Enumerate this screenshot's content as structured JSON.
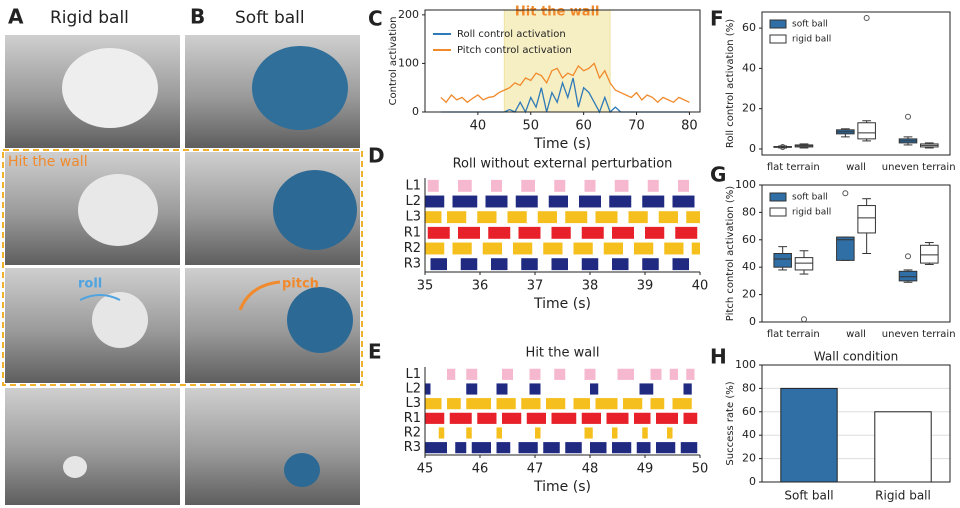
{
  "photos": {
    "A": {
      "letter": "A",
      "title": "Rigid ball"
    },
    "B": {
      "letter": "B",
      "title": "Soft ball"
    },
    "row_label": "Hit the wall",
    "roll_label": "roll",
    "pitch_label": "pitch"
  },
  "chart_data": [
    {
      "type": "line",
      "panel": "C",
      "xlabel": "Time (s)",
      "ylabel": "Control activation",
      "xlim": [
        30,
        82
      ],
      "ylim": [
        0,
        210
      ],
      "xticks": [
        40,
        50,
        60,
        70,
        80
      ],
      "yticks": [
        0,
        100,
        200
      ],
      "highlight": {
        "label": "Hit the wall",
        "range": [
          45,
          65
        ],
        "color": "#f7efc4"
      },
      "legend": "upper left",
      "x": [
        33,
        34,
        35,
        36,
        37,
        38,
        39,
        40,
        41,
        42,
        43,
        44,
        45,
        46,
        47,
        48,
        49,
        50,
        51,
        52,
        53,
        54,
        55,
        56,
        57,
        58,
        59,
        60,
        61,
        62,
        63,
        64,
        65,
        66,
        67,
        68,
        69,
        70,
        71,
        72,
        73,
        74,
        75,
        76,
        77,
        78,
        79,
        80
      ],
      "series": [
        {
          "name": "Roll control activation",
          "color": "#2f7ab8",
          "values": [
            0,
            0,
            0,
            0,
            0,
            0,
            0,
            0,
            0,
            0,
            0,
            0,
            0,
            5,
            0,
            20,
            0,
            30,
            10,
            50,
            0,
            40,
            20,
            60,
            30,
            70,
            10,
            50,
            40,
            20,
            0,
            30,
            0,
            10,
            0,
            0,
            0,
            0,
            0,
            0,
            0,
            0,
            0,
            0,
            0,
            0,
            0,
            0
          ]
        },
        {
          "name": "Pitch control activation",
          "color": "#f08a2c",
          "values": [
            30,
            20,
            35,
            25,
            30,
            20,
            28,
            35,
            25,
            30,
            32,
            40,
            45,
            50,
            60,
            55,
            70,
            65,
            80,
            75,
            60,
            85,
            90,
            70,
            80,
            75,
            95,
            85,
            90,
            100,
            70,
            85,
            60,
            45,
            40,
            35,
            30,
            40,
            25,
            35,
            30,
            20,
            30,
            25,
            20,
            30,
            25,
            20
          ]
        }
      ]
    },
    {
      "type": "raster",
      "panel": "D",
      "title": "Roll without external perturbation",
      "xlabel": "Time (s)",
      "xlim": [
        35,
        40
      ],
      "xticks": [
        35,
        36,
        37,
        38,
        39,
        40
      ],
      "series": [
        {
          "name": "L1",
          "color": "#f5b8cf",
          "intervals": [
            [
              35.05,
              35.25
            ],
            [
              35.6,
              35.85
            ],
            [
              36.2,
              36.4
            ],
            [
              36.75,
              37.0
            ],
            [
              37.35,
              37.55
            ],
            [
              37.9,
              38.1
            ],
            [
              38.45,
              38.7
            ],
            [
              39.05,
              39.25
            ],
            [
              39.6,
              39.8
            ]
          ]
        },
        {
          "name": "L2",
          "color": "#1f2a80",
          "intervals": [
            [
              35.0,
              35.35
            ],
            [
              35.5,
              35.95
            ],
            [
              36.1,
              36.5
            ],
            [
              36.65,
              37.05
            ],
            [
              37.25,
              37.6
            ],
            [
              37.8,
              38.2
            ],
            [
              38.35,
              38.75
            ],
            [
              38.95,
              39.35
            ],
            [
              39.5,
              39.9
            ]
          ]
        },
        {
          "name": "L3",
          "color": "#f5bf1e",
          "intervals": [
            [
              35.0,
              35.3
            ],
            [
              35.4,
              35.75
            ],
            [
              35.95,
              36.3
            ],
            [
              36.5,
              36.85
            ],
            [
              37.05,
              37.4
            ],
            [
              37.55,
              37.95
            ],
            [
              38.1,
              38.5
            ],
            [
              38.7,
              39.05
            ],
            [
              39.25,
              39.6
            ],
            [
              39.75,
              40.0
            ]
          ]
        },
        {
          "name": "R1",
          "color": "#e8202a",
          "intervals": [
            [
              35.05,
              35.45
            ],
            [
              35.6,
              36.0
            ],
            [
              36.15,
              36.55
            ],
            [
              36.7,
              37.1
            ],
            [
              37.3,
              37.65
            ],
            [
              37.85,
              38.25
            ],
            [
              38.4,
              38.8
            ],
            [
              39.0,
              39.35
            ],
            [
              39.55,
              39.95
            ]
          ]
        },
        {
          "name": "R2",
          "color": "#f5bf1e",
          "intervals": [
            [
              35.0,
              35.35
            ],
            [
              35.5,
              35.85
            ],
            [
              36.05,
              36.4
            ],
            [
              36.6,
              36.95
            ],
            [
              37.15,
              37.5
            ],
            [
              37.7,
              38.05
            ],
            [
              38.25,
              38.6
            ],
            [
              38.8,
              39.15
            ],
            [
              39.35,
              39.7
            ],
            [
              39.85,
              40.0
            ]
          ]
        },
        {
          "name": "R3",
          "color": "#1f2a80",
          "intervals": [
            [
              35.1,
              35.4
            ],
            [
              35.65,
              35.95
            ],
            [
              36.2,
              36.5
            ],
            [
              36.75,
              37.05
            ],
            [
              37.3,
              37.6
            ],
            [
              37.85,
              38.15
            ],
            [
              38.4,
              38.7
            ],
            [
              38.95,
              39.25
            ],
            [
              39.5,
              39.8
            ]
          ]
        }
      ]
    },
    {
      "type": "raster",
      "panel": "E",
      "title": "Hit the wall",
      "xlabel": "Time (s)",
      "xlim": [
        45,
        50
      ],
      "xticks": [
        45,
        46,
        47,
        48,
        49,
        50
      ],
      "series": [
        {
          "name": "L1",
          "color": "#f5b8cf",
          "intervals": [
            [
              45.4,
              45.55
            ],
            [
              45.75,
              45.95
            ],
            [
              46.4,
              46.6
            ],
            [
              46.9,
              47.1
            ],
            [
              47.35,
              47.55
            ],
            [
              47.9,
              48.1
            ],
            [
              48.5,
              48.8
            ],
            [
              49.1,
              49.3
            ],
            [
              49.45,
              49.6
            ],
            [
              49.75,
              49.9
            ]
          ]
        },
        {
          "name": "L2",
          "color": "#1f2a80",
          "intervals": [
            [
              45.0,
              45.1
            ],
            [
              45.75,
              45.95
            ],
            [
              46.3,
              46.5
            ],
            [
              46.9,
              47.1
            ],
            [
              48.0,
              48.15
            ],
            [
              48.9,
              49.15
            ],
            [
              49.7,
              49.85
            ]
          ]
        },
        {
          "name": "L3",
          "color": "#f5bf1e",
          "intervals": [
            [
              45.0,
              45.3
            ],
            [
              45.4,
              45.65
            ],
            [
              45.75,
              46.2
            ],
            [
              46.3,
              46.65
            ],
            [
              46.75,
              47.1
            ],
            [
              47.2,
              47.55
            ],
            [
              47.7,
              48.0
            ],
            [
              48.1,
              48.5
            ],
            [
              48.6,
              48.95
            ],
            [
              49.1,
              49.35
            ],
            [
              49.5,
              49.85
            ]
          ]
        },
        {
          "name": "R1",
          "color": "#e8202a",
          "intervals": [
            [
              45.0,
              45.35
            ],
            [
              45.45,
              45.85
            ],
            [
              45.95,
              46.3
            ],
            [
              46.4,
              46.75
            ],
            [
              46.85,
              47.2
            ],
            [
              47.3,
              47.75
            ],
            [
              47.85,
              48.2
            ],
            [
              48.3,
              48.7
            ],
            [
              48.8,
              49.1
            ],
            [
              49.2,
              49.6
            ],
            [
              49.7,
              49.95
            ]
          ]
        },
        {
          "name": "R2",
          "color": "#f5bf1e",
          "intervals": [
            [
              45.25,
              45.35
            ],
            [
              45.75,
              45.85
            ],
            [
              46.3,
              46.4
            ],
            [
              47.0,
              47.1
            ],
            [
              47.9,
              48.05
            ],
            [
              48.4,
              48.5
            ],
            [
              48.95,
              49.05
            ],
            [
              49.4,
              49.5
            ]
          ]
        },
        {
          "name": "R3",
          "color": "#1f2a80",
          "intervals": [
            [
              45.0,
              45.4
            ],
            [
              45.55,
              45.75
            ],
            [
              45.85,
              46.2
            ],
            [
              46.3,
              46.55
            ],
            [
              46.7,
              47.05
            ],
            [
              47.15,
              47.45
            ],
            [
              47.55,
              47.85
            ],
            [
              48.0,
              48.3
            ],
            [
              48.4,
              48.75
            ],
            [
              48.85,
              49.1
            ],
            [
              49.2,
              49.55
            ],
            [
              49.65,
              49.95
            ]
          ]
        }
      ]
    },
    {
      "type": "box",
      "panel": "F",
      "ylabel": "Roll control activation (%)",
      "ylim": [
        -3,
        68
      ],
      "yticks": [
        0,
        20,
        40,
        60
      ],
      "categories": [
        "flat terrain",
        "wall",
        "uneven terrain"
      ],
      "legend": "upper left",
      "series": [
        {
          "name": "soft ball",
          "color": "#2f6fa6",
          "boxes": [
            {
              "whisker_low": 0.5,
              "q1": 0.8,
              "median": 1,
              "q3": 1.2,
              "whisker_high": 1.5,
              "outliers": [
                1
              ]
            },
            {
              "whisker_low": 6,
              "q1": 7.5,
              "median": 8.5,
              "q3": 9.5,
              "whisker_high": 10,
              "outliers": []
            },
            {
              "whisker_low": 2,
              "q1": 3,
              "median": 4,
              "q3": 5,
              "whisker_high": 6,
              "outliers": [
                16
              ]
            }
          ]
        },
        {
          "name": "rigid ball",
          "color": "#ffffff",
          "boxes": [
            {
              "whisker_low": 0.5,
              "q1": 1,
              "median": 1.5,
              "q3": 2,
              "whisker_high": 2.5,
              "outliers": []
            },
            {
              "whisker_low": 4,
              "q1": 5,
              "median": 8,
              "q3": 13,
              "whisker_high": 14,
              "outliers": [
                65
              ]
            },
            {
              "whisker_low": 0.5,
              "q1": 1,
              "median": 1.8,
              "q3": 2.5,
              "whisker_high": 3,
              "outliers": []
            }
          ]
        }
      ]
    },
    {
      "type": "box",
      "panel": "G",
      "ylabel": "Pitch control activation (%)",
      "ylim": [
        0,
        100
      ],
      "yticks": [
        0,
        20,
        40,
        60,
        80,
        100
      ],
      "categories": [
        "flat terrain",
        "wall",
        "uneven terrain"
      ],
      "legend": "upper left",
      "series": [
        {
          "name": "soft ball",
          "color": "#2f6fa6",
          "boxes": [
            {
              "whisker_low": 38,
              "q1": 40,
              "median": 46,
              "q3": 50,
              "whisker_high": 55,
              "outliers": []
            },
            {
              "whisker_low": 45,
              "q1": 45,
              "median": 60,
              "q3": 62,
              "whisker_high": 62,
              "outliers": [
                94
              ]
            },
            {
              "whisker_low": 29,
              "q1": 30,
              "median": 33,
              "q3": 37,
              "whisker_high": 38,
              "outliers": [
                48
              ]
            }
          ]
        },
        {
          "name": "rigid ball",
          "color": "#ffffff",
          "boxes": [
            {
              "whisker_low": 35,
              "q1": 38,
              "median": 43,
              "q3": 47,
              "whisker_high": 52,
              "outliers": [
                2
              ]
            },
            {
              "whisker_low": 50,
              "q1": 65,
              "median": 76,
              "q3": 85,
              "whisker_high": 90,
              "outliers": []
            },
            {
              "whisker_low": 42,
              "q1": 43,
              "median": 49,
              "q3": 56,
              "whisker_high": 58,
              "outliers": []
            }
          ]
        }
      ]
    },
    {
      "type": "bar",
      "panel": "H",
      "title": "Wall condition",
      "ylabel": "Success rate (%)",
      "ylim": [
        0,
        100
      ],
      "yticks": [
        0,
        20,
        40,
        60,
        80,
        100
      ],
      "grid": true,
      "categories": [
        "Soft ball",
        "Rigid ball"
      ],
      "values": [
        80,
        60
      ],
      "colors": [
        "#2f6fa6",
        "#ffffff"
      ]
    }
  ]
}
